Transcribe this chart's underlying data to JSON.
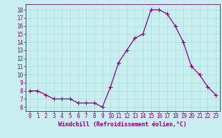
{
  "x": [
    0,
    1,
    2,
    3,
    4,
    5,
    6,
    7,
    8,
    9,
    10,
    11,
    12,
    13,
    14,
    15,
    16,
    17,
    18,
    19,
    20,
    21,
    22,
    23
  ],
  "y": [
    8,
    8,
    7.5,
    7,
    7,
    7,
    6.5,
    6.5,
    6.5,
    6,
    8.5,
    11.5,
    13,
    14.5,
    15,
    18,
    18,
    17.5,
    16,
    14,
    11,
    10,
    8.5,
    7.5
  ],
  "line_color": "#800080",
  "marker": "+",
  "marker_size": 4,
  "marker_linewidth": 0.8,
  "line_width": 0.9,
  "background_color": "#c8eef0",
  "grid_color": "#aadddd",
  "xlabel": "Windchill (Refroidissement éolien,°C)",
  "label_color": "#800080",
  "tick_color": "#800080",
  "ylabel_ticks": [
    6,
    7,
    8,
    9,
    10,
    11,
    12,
    13,
    14,
    15,
    16,
    17,
    18
  ],
  "xlim": [
    -0.5,
    23.5
  ],
  "ylim": [
    5.5,
    18.7
  ],
  "tick_fontsize": 5.5,
  "xlabel_fontsize": 6.0
}
